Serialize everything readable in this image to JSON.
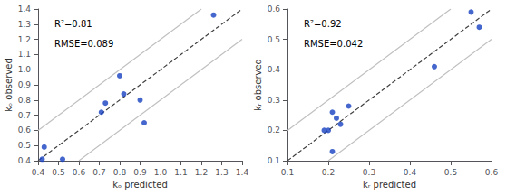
{
  "chart_data": [
    {
      "type": "scatter",
      "xlabel": "kₒ predicted",
      "ylabel": "kₒ observed",
      "annotations": [
        "R²=0.81",
        "RMSE=0.089"
      ],
      "xlim": [
        0.4,
        1.4
      ],
      "ylim": [
        0.4,
        1.4
      ],
      "xticks": [
        0.4,
        0.5,
        0.6,
        0.7,
        0.8,
        0.9,
        {
          "value": 1,
          "label": "1.0"
        },
        1.1,
        1.2,
        1.3,
        1.4
      ],
      "yticks": [
        0.4,
        0.5,
        0.6,
        0.7,
        0.8,
        0.9,
        {
          "value": 1,
          "label": "1.0"
        },
        1.1,
        1.2,
        1.3,
        1.4
      ],
      "grid": false,
      "series": [
        {
          "type": "line",
          "color": "#c0c0c0",
          "line_style": "solid",
          "x": [
            0.4,
            1.2
          ],
          "values": [
            0.6,
            1.4
          ]
        },
        {
          "type": "line",
          "color": "#c0c0c0",
          "line_style": "solid",
          "x": [
            0.6,
            1.4
          ],
          "values": [
            0.4,
            1.2
          ]
        },
        {
          "type": "line",
          "color": "#404040",
          "line_style": "dashed",
          "x": [
            0.4,
            1.4
          ],
          "values": [
            0.4,
            1.4
          ]
        },
        {
          "type": "scatter",
          "color": "#1540c0",
          "marker": "circle",
          "x": [
            0.42,
            0.43,
            0.52,
            0.71,
            0.73,
            0.8,
            0.82,
            0.9,
            0.92,
            1.26
          ],
          "values": [
            0.41,
            0.49,
            0.41,
            0.72,
            0.78,
            0.96,
            0.84,
            0.8,
            0.65,
            1.36
          ]
        }
      ]
    },
    {
      "type": "scatter",
      "xlabel": "kᵣ predicted",
      "ylabel": "kᵣ observed",
      "annotations": [
        "R²=0.92",
        "RMSE=0.042"
      ],
      "xlim": [
        0.1,
        0.6
      ],
      "ylim": [
        0.1,
        0.6
      ],
      "xticks": [
        0.1,
        0.2,
        0.3,
        0.4,
        0.5,
        0.6
      ],
      "yticks": [
        0.1,
        0.2,
        0.3,
        0.4,
        0.5,
        0.6
      ],
      "grid": false,
      "series": [
        {
          "type": "line",
          "color": "#c0c0c0",
          "line_style": "solid",
          "x": [
            0.1,
            0.5
          ],
          "values": [
            0.2,
            0.6
          ]
        },
        {
          "type": "line",
          "color": "#c0c0c0",
          "line_style": "solid",
          "x": [
            0.2,
            0.6
          ],
          "values": [
            0.1,
            0.5
          ]
        },
        {
          "type": "line",
          "color": "#404040",
          "line_style": "dashed",
          "x": [
            0.1,
            0.6
          ],
          "values": [
            0.1,
            0.6
          ]
        },
        {
          "type": "scatter",
          "color": "#1540c0",
          "marker": "circle",
          "x": [
            0.19,
            0.2,
            0.21,
            0.21,
            0.22,
            0.23,
            0.25,
            0.46,
            0.55,
            0.57
          ],
          "values": [
            0.2,
            0.2,
            0.26,
            0.13,
            0.24,
            0.22,
            0.28,
            0.41,
            0.59,
            0.54
          ]
        }
      ]
    }
  ]
}
